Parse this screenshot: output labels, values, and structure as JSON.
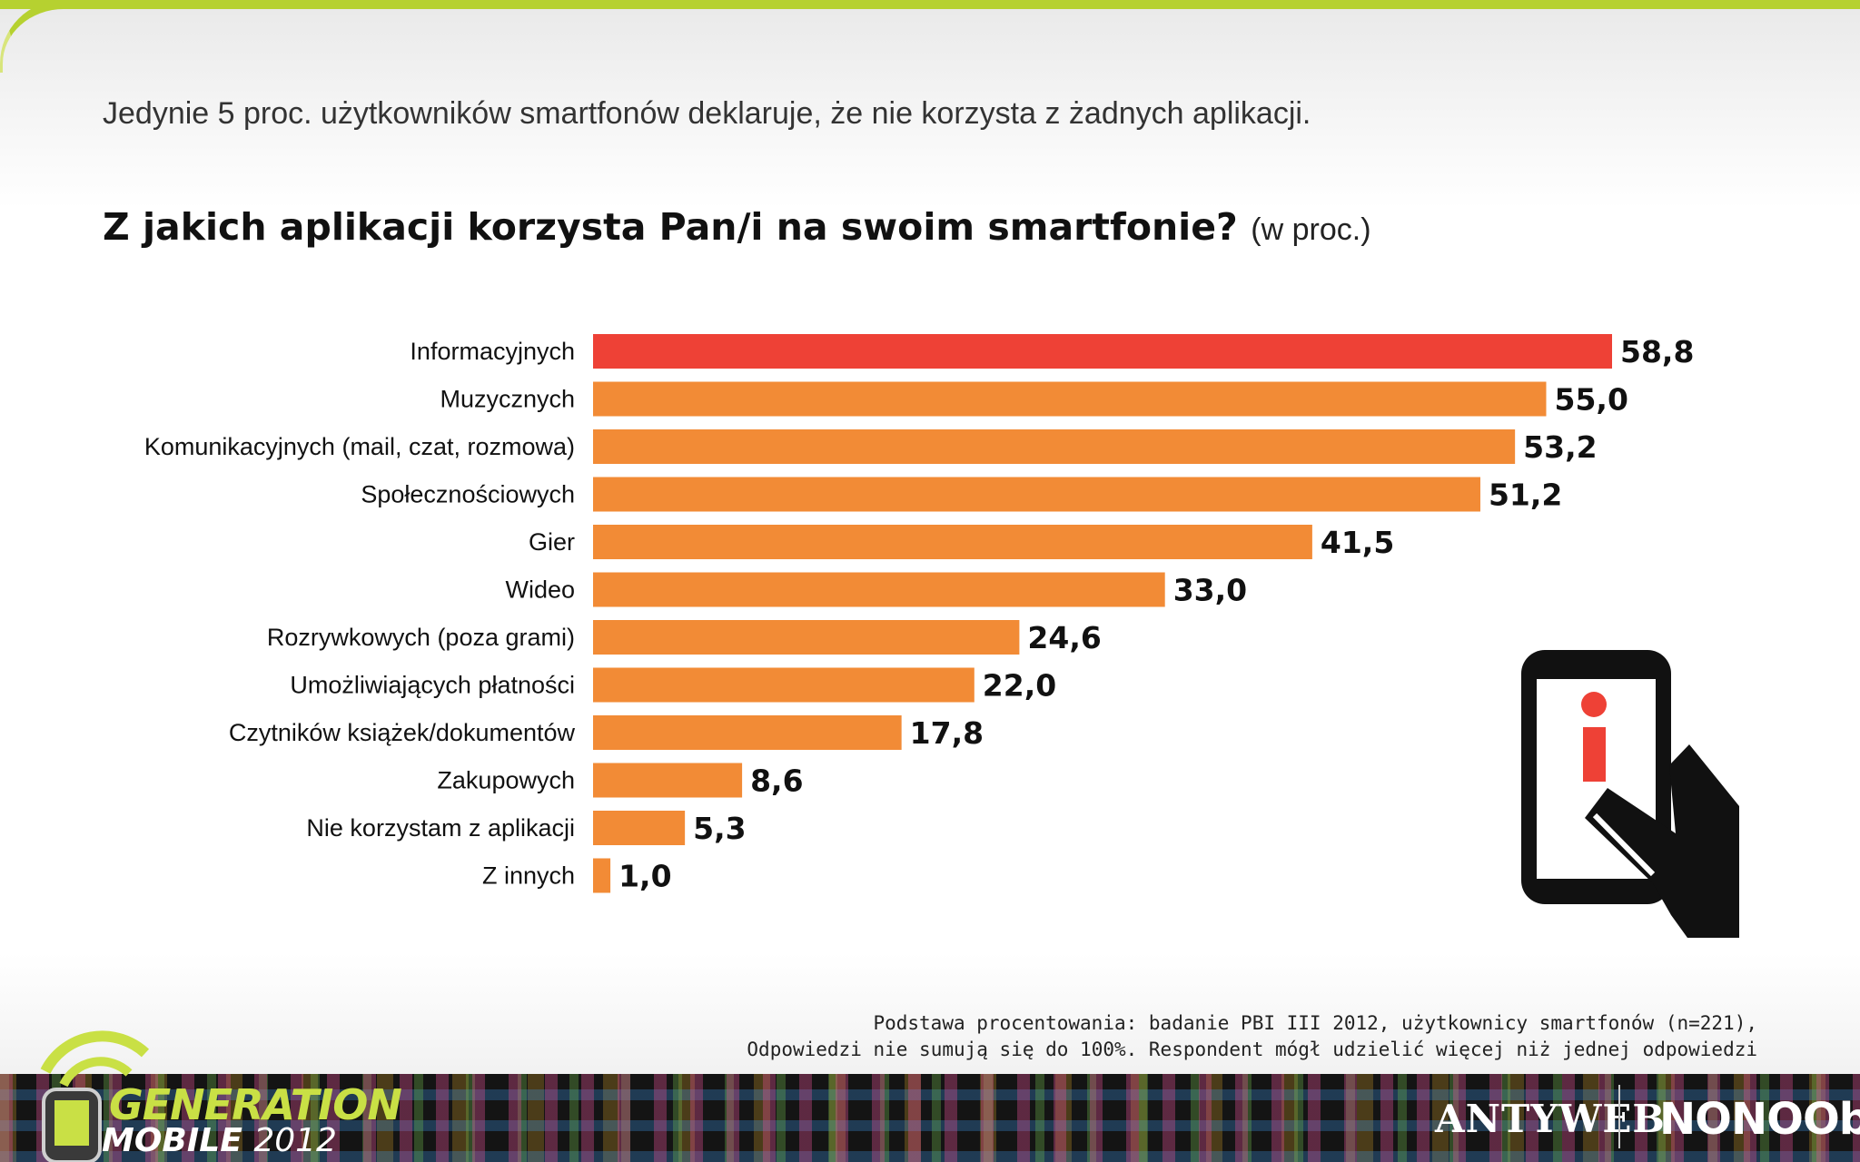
{
  "headline": "Jedynie 5 proc. użytkowników smartfonów deklaruje, że nie korzysta z żadnych aplikacji.",
  "question": {
    "main": "Z jakich aplikacji korzysta Pan/i na swoim smartfonie?",
    "unit": "(w proc.)"
  },
  "colors": {
    "highlight_bar": "#ee4136",
    "bar": "#f28b36",
    "accent_green": "#b6d130",
    "text_dark": "#111111"
  },
  "chart_data": {
    "type": "bar",
    "orientation": "horizontal",
    "categories": [
      "Informacyjnych",
      "Muzycznych",
      "Komunikacyjnych (mail, czat, rozmowa)",
      "Społecznościowych",
      "Gier",
      "Wideo",
      "Rozrywkowych (poza grami)",
      "Umożliwiających płatności",
      "Czytników książek/dokumentów",
      "Zakupowych",
      "Nie korzystam z aplikacji",
      "Z innych"
    ],
    "values": [
      58.8,
      55.0,
      53.2,
      51.2,
      41.5,
      33.0,
      24.6,
      22.0,
      17.8,
      8.6,
      5.3,
      1.0
    ],
    "value_labels": [
      "58,8",
      "55,0",
      "53,2",
      "51,2",
      "41,5",
      "33,0",
      "24,6",
      "22,0",
      "17,8",
      "8,6",
      "5,3",
      "1,0"
    ],
    "highlighted_index": 0,
    "xlim": [
      0,
      60
    ],
    "grid": false,
    "legend": "none"
  },
  "footnote": {
    "line1": "Podstawa procentowania: badanie PBI III 2012, użytkownicy smartfonów (n=221),",
    "line2": "Odpowiedzi nie sumują się do 100%. Respondent mógł udzielić więcej niż jednej odpowiedzi"
  },
  "logo": {
    "line1": "GENERATION",
    "line2": "MOBILE",
    "year": "2012"
  },
  "brands": {
    "antyweb": "ANTYWEB",
    "nonoobs": "NONOObS"
  },
  "icons": {
    "illustration": "hand-holding-phone-info-icon",
    "logo_icon": "phone-signal-icon"
  }
}
